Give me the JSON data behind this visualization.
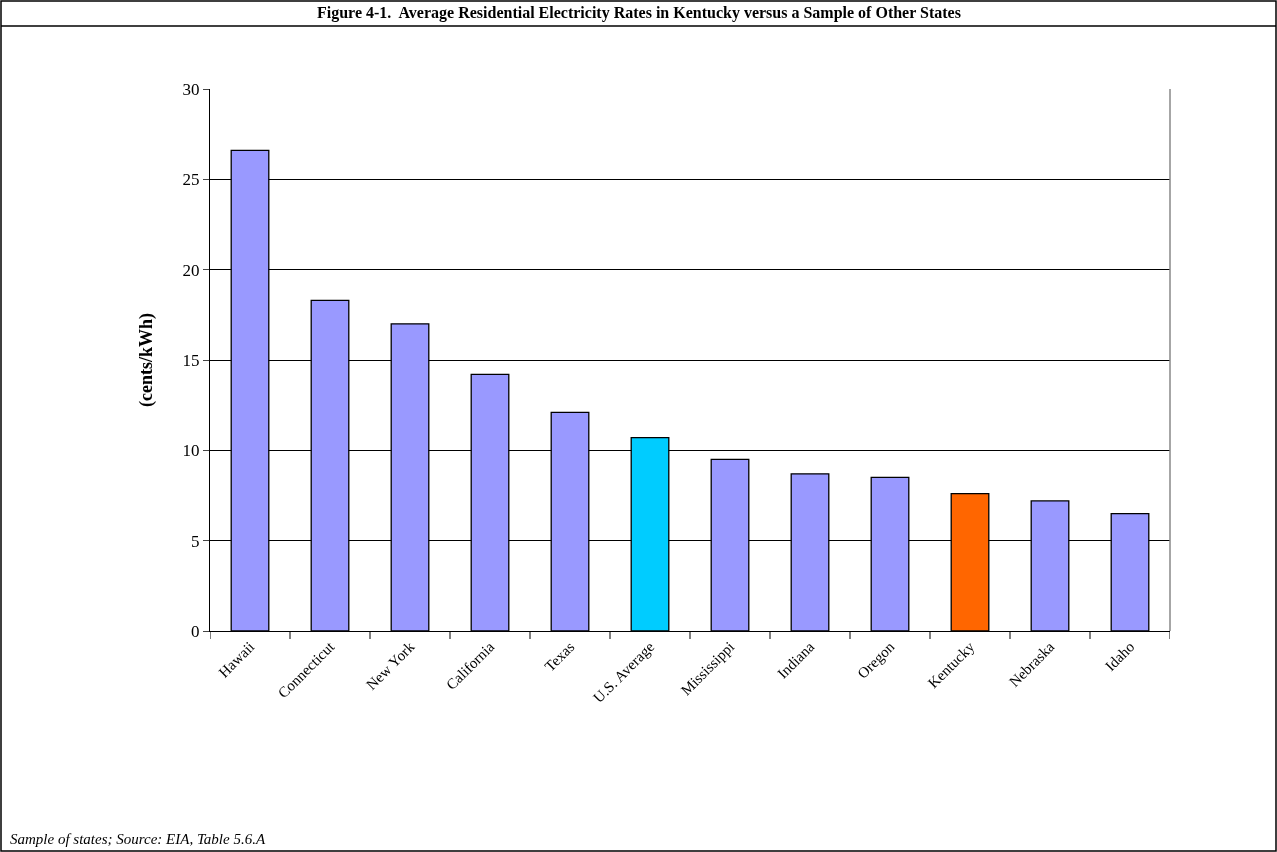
{
  "chart_data": {
    "type": "bar",
    "title": "Figure 4-1.  Average Residential Electricity Rates in Kentucky versus a Sample of Other States",
    "ylabel": "(cents/kWh)",
    "categories": [
      "Hawaii",
      "Connecticut",
      "New York",
      "California",
      "Texas",
      "U.S. Average",
      "Mississippi",
      "Indiana",
      "Oregon",
      "Kentucky",
      "Nebraska",
      "Idaho"
    ],
    "values": [
      26.6,
      18.3,
      17.0,
      14.2,
      12.1,
      10.7,
      9.5,
      8.7,
      8.5,
      7.6,
      7.2,
      6.5
    ],
    "colors": [
      "#9999ff",
      "#9999ff",
      "#9999ff",
      "#9999ff",
      "#9999ff",
      "#00ccff",
      "#9999ff",
      "#9999ff",
      "#9999ff",
      "#ff6600",
      "#9999ff",
      "#9999ff"
    ],
    "ylim": [
      0,
      30
    ],
    "yticks": [
      0,
      5,
      10,
      15,
      20,
      25,
      30
    ],
    "grid": "y",
    "legend": false,
    "annotations": [
      "Sample of states; Source: EIA, Table 5.6.A"
    ]
  }
}
